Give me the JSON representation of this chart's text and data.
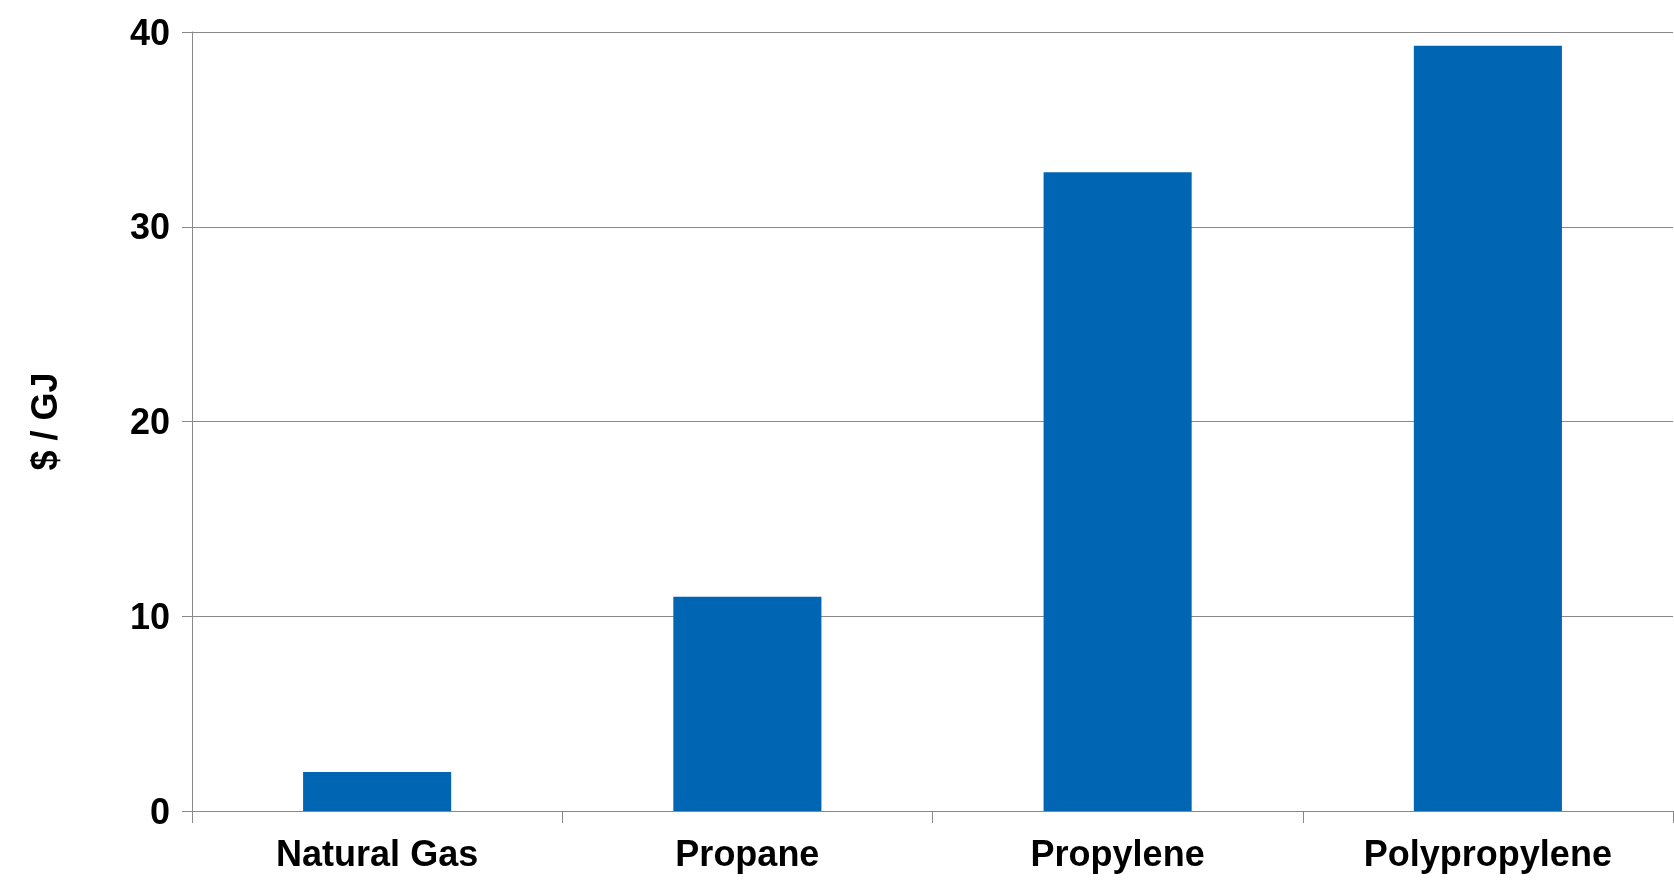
{
  "chart_data": {
    "type": "bar",
    "ylabel": "$ / GJ",
    "categories": [
      "Natural Gas",
      "Propane",
      "Propylene",
      "Polypropylene"
    ],
    "values": [
      2.0,
      11.0,
      32.8,
      39.3
    ],
    "color": "#0066b3",
    "ylim": [
      0,
      40
    ],
    "yticks": [
      0,
      10,
      20,
      30,
      40
    ],
    "grid": "y"
  }
}
